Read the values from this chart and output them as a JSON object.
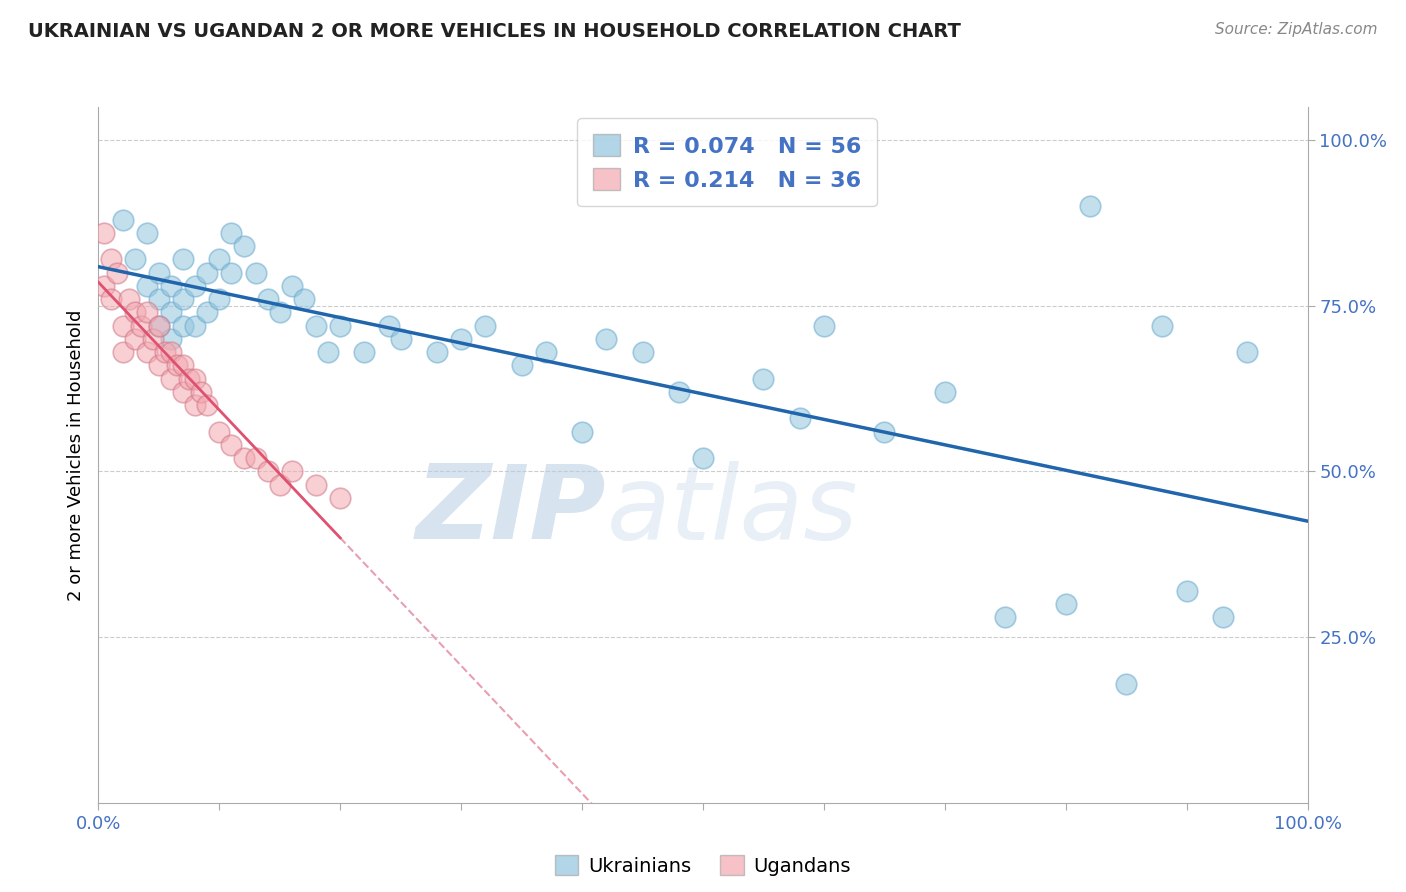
{
  "title": "UKRAINIAN VS UGANDAN 2 OR MORE VEHICLES IN HOUSEHOLD CORRELATION CHART",
  "source_text": "Source: ZipAtlas.com",
  "ylabel": "2 or more Vehicles in Household",
  "xlim": [
    0.0,
    1.0
  ],
  "ylim": [
    0.0,
    1.05
  ],
  "xtick_positions": [
    0.0,
    0.1,
    0.2,
    0.3,
    0.4,
    0.5,
    0.6,
    0.7,
    0.8,
    0.9,
    1.0
  ],
  "xtick_labels_show": [
    "0.0%",
    "",
    "",
    "",
    "",
    "",
    "",
    "",
    "",
    "",
    "100.0%"
  ],
  "ytick_positions": [
    0.25,
    0.5,
    0.75,
    1.0
  ],
  "ytick_labels": [
    "25.0%",
    "50.0%",
    "75.0%",
    "100.0%"
  ],
  "R_blue": 0.074,
  "N_blue": 56,
  "R_pink": 0.214,
  "N_pink": 36,
  "blue_color": "#92c5de",
  "pink_color": "#f4a8b0",
  "blue_line_color": "#2166ac",
  "pink_line_color": "#e05070",
  "pink_dash_color": "#e8a0b0",
  "watermark_left": "ZIP",
  "watermark_right": "atlas",
  "watermark_color": "#ccdcee",
  "blue_scatter_x": [
    0.02,
    0.03,
    0.04,
    0.04,
    0.05,
    0.05,
    0.05,
    0.06,
    0.06,
    0.06,
    0.07,
    0.07,
    0.07,
    0.08,
    0.08,
    0.09,
    0.09,
    0.1,
    0.1,
    0.11,
    0.11,
    0.12,
    0.13,
    0.14,
    0.15,
    0.16,
    0.17,
    0.18,
    0.19,
    0.2,
    0.22,
    0.24,
    0.25,
    0.28,
    0.3,
    0.32,
    0.35,
    0.37,
    0.4,
    0.42,
    0.45,
    0.48,
    0.5,
    0.55,
    0.58,
    0.6,
    0.65,
    0.7,
    0.75,
    0.8,
    0.82,
    0.85,
    0.88,
    0.9,
    0.93,
    0.95
  ],
  "blue_scatter_y": [
    0.88,
    0.82,
    0.86,
    0.78,
    0.8,
    0.76,
    0.72,
    0.78,
    0.74,
    0.7,
    0.82,
    0.76,
    0.72,
    0.78,
    0.72,
    0.8,
    0.74,
    0.82,
    0.76,
    0.86,
    0.8,
    0.84,
    0.8,
    0.76,
    0.74,
    0.78,
    0.76,
    0.72,
    0.68,
    0.72,
    0.68,
    0.72,
    0.7,
    0.68,
    0.7,
    0.72,
    0.66,
    0.68,
    0.56,
    0.7,
    0.68,
    0.62,
    0.52,
    0.64,
    0.58,
    0.72,
    0.56,
    0.62,
    0.28,
    0.3,
    0.9,
    0.18,
    0.72,
    0.32,
    0.28,
    0.68
  ],
  "pink_scatter_x": [
    0.005,
    0.005,
    0.01,
    0.01,
    0.015,
    0.02,
    0.02,
    0.025,
    0.03,
    0.03,
    0.035,
    0.04,
    0.04,
    0.045,
    0.05,
    0.05,
    0.055,
    0.06,
    0.06,
    0.065,
    0.07,
    0.07,
    0.075,
    0.08,
    0.08,
    0.085,
    0.09,
    0.1,
    0.11,
    0.12,
    0.13,
    0.14,
    0.15,
    0.16,
    0.18,
    0.2
  ],
  "pink_scatter_y": [
    0.86,
    0.78,
    0.82,
    0.76,
    0.8,
    0.72,
    0.68,
    0.76,
    0.74,
    0.7,
    0.72,
    0.74,
    0.68,
    0.7,
    0.72,
    0.66,
    0.68,
    0.68,
    0.64,
    0.66,
    0.66,
    0.62,
    0.64,
    0.64,
    0.6,
    0.62,
    0.6,
    0.56,
    0.54,
    0.52,
    0.52,
    0.5,
    0.48,
    0.5,
    0.48,
    0.46
  ]
}
